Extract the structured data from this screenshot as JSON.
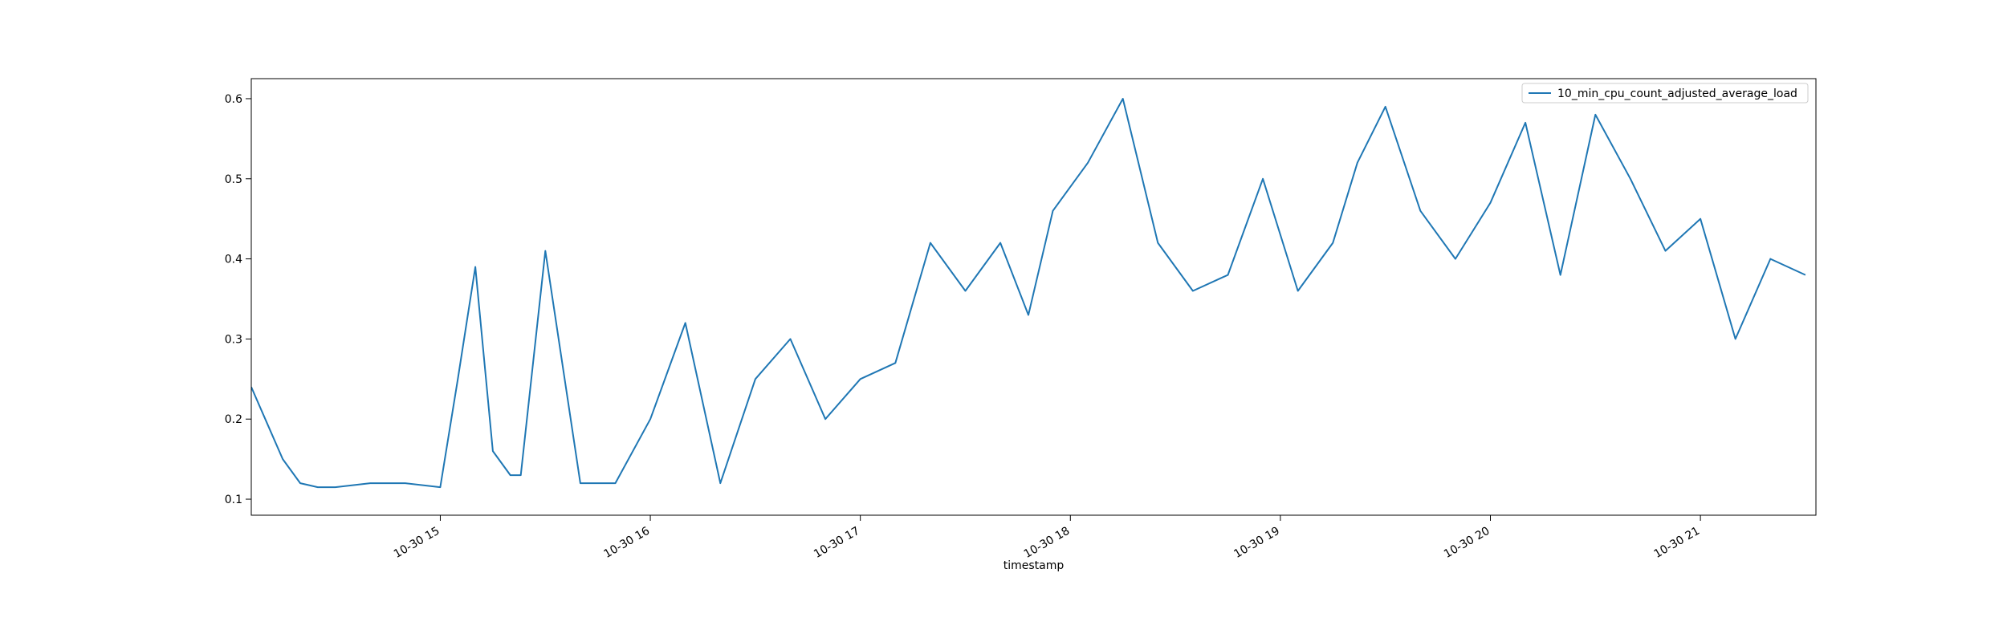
{
  "chart_data": {
    "type": "line",
    "title": "",
    "xlabel": "timestamp",
    "ylabel": "",
    "ylim": [
      0.08,
      0.625
    ],
    "xlim_hours": [
      14.1,
      21.55
    ],
    "xaxis_date_prefix": "2020-10-30",
    "x_tick_labels": [
      "10-30 15",
      "10-30 16",
      "10-30 17",
      "10-30 18",
      "10-30 19",
      "10-30 20",
      "10-30 21"
    ],
    "x_tick_hours": [
      15,
      16,
      17,
      18,
      19,
      20,
      21
    ],
    "y_ticks": [
      0.1,
      0.2,
      0.3,
      0.4,
      0.5,
      0.6
    ],
    "y_tick_labels": [
      "0.1",
      "0.2",
      "0.3",
      "0.4",
      "0.5",
      "0.6"
    ],
    "grid": false,
    "legend_position": "top-right",
    "line_color": "#1f77b4",
    "series": [
      {
        "name": "10_min_cpu_count_adjusted_average_load",
        "x": [
          "2020-10-30 14:06",
          "2020-10-30 14:10",
          "2020-10-30 14:15",
          "2020-10-30 14:20",
          "2020-10-30 14:25",
          "2020-10-30 14:30",
          "2020-10-30 14:40",
          "2020-10-30 14:50",
          "2020-10-30 15:00",
          "2020-10-30 15:05",
          "2020-10-30 15:10",
          "2020-10-30 15:15",
          "2020-10-30 15:20",
          "2020-10-30 15:23",
          "2020-10-30 15:30",
          "2020-10-30 15:40",
          "2020-10-30 15:50",
          "2020-10-30 16:00",
          "2020-10-30 16:10",
          "2020-10-30 16:20",
          "2020-10-30 16:30",
          "2020-10-30 16:40",
          "2020-10-30 16:50",
          "2020-10-30 17:00",
          "2020-10-30 17:10",
          "2020-10-30 17:20",
          "2020-10-30 17:30",
          "2020-10-30 17:40",
          "2020-10-30 17:48",
          "2020-10-30 17:55",
          "2020-10-30 18:05",
          "2020-10-30 18:15",
          "2020-10-30 18:25",
          "2020-10-30 18:35",
          "2020-10-30 18:45",
          "2020-10-30 18:55",
          "2020-10-30 19:05",
          "2020-10-30 19:15",
          "2020-10-30 19:22",
          "2020-10-30 19:30",
          "2020-10-30 19:40",
          "2020-10-30 19:50",
          "2020-10-30 20:00",
          "2020-10-30 20:10",
          "2020-10-30 20:20",
          "2020-10-30 20:30",
          "2020-10-30 20:40",
          "2020-10-30 20:50",
          "2020-10-30 21:00",
          "2020-10-30 21:10",
          "2020-10-30 21:20",
          "2020-10-30 21:30"
        ],
        "y": [
          0.24,
          0.2,
          0.15,
          0.12,
          0.115,
          0.115,
          0.12,
          0.12,
          0.115,
          0.25,
          0.39,
          0.16,
          0.13,
          0.13,
          0.41,
          0.12,
          0.12,
          0.2,
          0.32,
          0.12,
          0.25,
          0.3,
          0.2,
          0.25,
          0.27,
          0.42,
          0.36,
          0.42,
          0.33,
          0.46,
          0.52,
          0.6,
          0.42,
          0.36,
          0.38,
          0.5,
          0.36,
          0.42,
          0.52,
          0.59,
          0.46,
          0.4,
          0.47,
          0.57,
          0.38,
          0.58,
          0.5,
          0.41,
          0.45,
          0.3,
          0.4,
          0.38
        ]
      }
    ]
  }
}
